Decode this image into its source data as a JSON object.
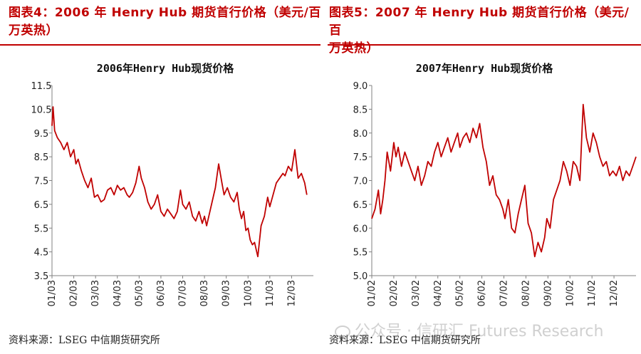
{
  "panels": [
    {
      "title_line1": "图表4：2006 年 Henry Hub 期货首行价格（美元/百",
      "title_line2": "万英热）",
      "source": "资料来源：LSEG  中信期货研究所"
    },
    {
      "title_line1": "图表5：2007 年 Henry Hub 期货首行价格（美元/百",
      "title_line2": "万英热）",
      "source": "资料来源：LSEG  中信期货研究所"
    }
  ],
  "watermark": "公众号 · 信研汇 Futures Research",
  "colors": {
    "line": "#c00000",
    "title": "#c00000",
    "axis": "#808080"
  },
  "chart_data": [
    {
      "type": "line",
      "title": "2006年Henry Hub现货价格",
      "yticks": [
        "11.5",
        "10.5",
        "9.5",
        "8.5",
        "7.5",
        "6.5",
        "5.5",
        "4.5",
        "3.5"
      ],
      "ylim": [
        3.5,
        11.5
      ],
      "xticks": [
        "01/03",
        "02/03",
        "03/03",
        "04/03",
        "05/03",
        "06/03",
        "07/03",
        "08/03",
        "09/03",
        "10/03",
        "11/03",
        "12/03"
      ],
      "xlim": [
        0,
        12
      ],
      "grid": false,
      "series": [
        {
          "x": [
            0,
            0.05,
            0.12,
            0.25,
            0.4,
            0.55,
            0.7,
            0.85,
            1.0,
            1.1,
            1.2,
            1.35,
            1.5,
            1.65,
            1.8,
            1.95,
            2.1,
            2.25,
            2.4,
            2.55,
            2.7,
            2.85,
            3.0,
            3.15,
            3.3,
            3.45,
            3.55,
            3.7,
            3.85,
            4.0,
            4.1,
            4.25,
            4.4,
            4.55,
            4.7,
            4.85,
            5.0,
            5.15,
            5.3,
            5.45,
            5.6,
            5.75,
            5.9,
            6.0,
            6.15,
            6.3,
            6.45,
            6.6,
            6.75,
            6.9,
            7.0,
            7.1,
            7.2,
            7.35,
            7.5,
            7.65,
            7.8,
            7.9,
            8.05,
            8.2,
            8.35,
            8.5,
            8.6,
            8.7,
            8.8,
            8.9,
            9.0,
            9.1,
            9.2,
            9.3,
            9.45,
            9.6,
            9.75,
            9.9,
            10.0,
            10.15,
            10.3,
            10.45,
            10.6,
            10.7,
            10.85,
            11.0,
            11.15,
            11.3,
            11.45,
            11.6,
            11.7
          ],
          "y": [
            9.8,
            10.6,
            9.6,
            9.3,
            9.1,
            8.8,
            9.1,
            8.5,
            8.8,
            8.2,
            8.4,
            7.9,
            7.5,
            7.2,
            7.6,
            6.8,
            6.9,
            6.6,
            6.7,
            7.1,
            7.2,
            6.9,
            7.3,
            7.1,
            7.2,
            6.9,
            6.8,
            7.0,
            7.4,
            8.1,
            7.6,
            7.2,
            6.6,
            6.3,
            6.5,
            6.9,
            6.2,
            6.0,
            6.3,
            6.1,
            5.9,
            6.2,
            7.1,
            6.5,
            6.3,
            6.6,
            6.0,
            5.8,
            6.2,
            5.7,
            6.0,
            5.6,
            6.0,
            6.6,
            7.2,
            8.2,
            7.4,
            6.9,
            7.2,
            6.8,
            6.6,
            7.0,
            6.3,
            5.9,
            6.2,
            5.4,
            5.5,
            5.0,
            4.8,
            4.9,
            4.3,
            5.6,
            6.0,
            6.8,
            6.4,
            6.9,
            7.4,
            7.6,
            7.8,
            7.7,
            8.1,
            7.9,
            8.8,
            7.6,
            7.8,
            7.4,
            6.9
          ]
        }
      ]
    },
    {
      "type": "line",
      "title": "2007年Henry Hub现货价格",
      "yticks": [
        "9.0",
        "8.5",
        "8.0",
        "7.5",
        "7.0",
        "6.5",
        "6.0",
        "5.5",
        "5.0"
      ],
      "ylim": [
        5.0,
        9.0
      ],
      "xticks": [
        "01/02",
        "02/02",
        "03/02",
        "04/02",
        "05/02",
        "06/02",
        "07/02",
        "08/02",
        "09/02",
        "10/02",
        "11/02",
        "12/02"
      ],
      "xlim": [
        0,
        12
      ],
      "grid": false,
      "series": [
        {
          "x": [
            0,
            0.15,
            0.3,
            0.4,
            0.5,
            0.6,
            0.7,
            0.85,
            1.0,
            1.1,
            1.2,
            1.35,
            1.5,
            1.65,
            1.8,
            1.95,
            2.1,
            2.25,
            2.4,
            2.55,
            2.7,
            2.85,
            3.0,
            3.15,
            3.3,
            3.45,
            3.6,
            3.75,
            3.9,
            4.0,
            4.15,
            4.3,
            4.45,
            4.6,
            4.75,
            4.9,
            5.05,
            5.2,
            5.35,
            5.5,
            5.65,
            5.8,
            5.95,
            6.05,
            6.2,
            6.35,
            6.5,
            6.65,
            6.8,
            6.95,
            7.1,
            7.25,
            7.4,
            7.55,
            7.7,
            7.85,
            7.95,
            8.1,
            8.25,
            8.4,
            8.55,
            8.7,
            8.85,
            9.0,
            9.15,
            9.3,
            9.45,
            9.6,
            9.75,
            9.9,
            10.05,
            10.2,
            10.35,
            10.5,
            10.65,
            10.8,
            10.95,
            11.1,
            11.25,
            11.4,
            11.55,
            11.7,
            11.85,
            12.0
          ],
          "y": [
            6.2,
            6.4,
            6.8,
            6.3,
            6.6,
            7.0,
            7.6,
            7.2,
            7.8,
            7.5,
            7.7,
            7.3,
            7.6,
            7.4,
            7.2,
            7.0,
            7.3,
            6.9,
            7.1,
            7.4,
            7.3,
            7.6,
            7.8,
            7.5,
            7.7,
            7.9,
            7.6,
            7.8,
            8.0,
            7.7,
            7.9,
            8.0,
            7.8,
            8.1,
            7.9,
            8.2,
            7.7,
            7.4,
            6.9,
            7.1,
            6.7,
            6.6,
            6.4,
            6.2,
            6.6,
            6.0,
            5.9,
            6.3,
            6.6,
            6.9,
            6.1,
            5.9,
            5.4,
            5.7,
            5.5,
            5.8,
            6.2,
            6.0,
            6.6,
            6.8,
            7.0,
            7.4,
            7.2,
            6.9,
            7.4,
            7.3,
            7.0,
            8.6,
            7.9,
            7.6,
            8.0,
            7.8,
            7.5,
            7.3,
            7.4,
            7.1,
            7.2,
            7.1,
            7.3,
            7.0,
            7.2,
            7.1,
            7.3,
            7.5
          ]
        }
      ]
    }
  ]
}
